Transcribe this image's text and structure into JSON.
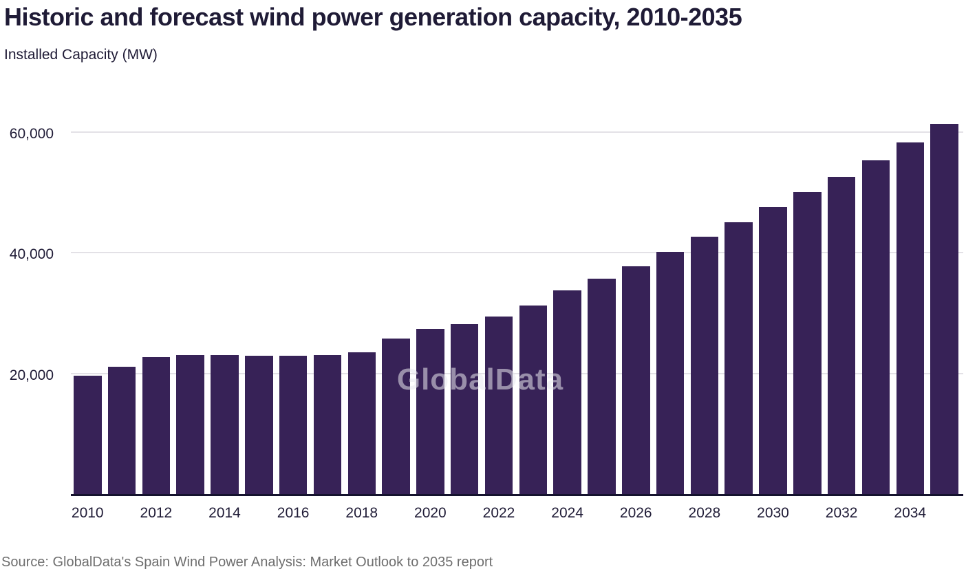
{
  "title": "Historic and forecast wind power generation capacity, 2010-2035",
  "subtitle": "Installed Capacity (MW)",
  "source": "Source: GlobalData's Spain Wind Power Analysis: Market Outlook to 2035 report",
  "watermark": "GlobalData",
  "colors": {
    "bar": "#372257",
    "title_text": "#1f1b36",
    "axis_line": "#15132e",
    "gridline": "#e3e1e6",
    "source_text": "#6e6e6e",
    "watermark_text": "#e9e9ef"
  },
  "chart_data": {
    "type": "bar",
    "title": "Historic and forecast wind power generation capacity, 2010-2035",
    "subtitle": "Installed Capacity (MW)",
    "xlabel": "",
    "ylabel": "Installed Capacity (MW)",
    "categories": [
      2010,
      2011,
      2012,
      2013,
      2014,
      2015,
      2016,
      2017,
      2018,
      2019,
      2020,
      2021,
      2022,
      2023,
      2024,
      2025,
      2026,
      2027,
      2028,
      2029,
      2030,
      2031,
      2032,
      2033,
      2034,
      2035
    ],
    "values": [
      19600,
      21100,
      22700,
      23000,
      23000,
      22900,
      22950,
      23050,
      23500,
      25800,
      27400,
      28200,
      29400,
      31200,
      33700,
      35700,
      37800,
      40100,
      42700,
      45100,
      47600,
      50100,
      52600,
      55300,
      58300,
      61300
    ],
    "ylim": [
      0,
      65000
    ],
    "yticks": [
      20000,
      40000,
      60000
    ],
    "ytick_labels": [
      "20,000",
      "40,000",
      "60,000"
    ],
    "xtick_labels": [
      "2010",
      "2012",
      "2014",
      "2016",
      "2018",
      "2020",
      "2022",
      "2024",
      "2026",
      "2028",
      "2030",
      "2032",
      "2034"
    ],
    "grid": "horizontal",
    "legend": "none",
    "bar_color": "#372257"
  }
}
